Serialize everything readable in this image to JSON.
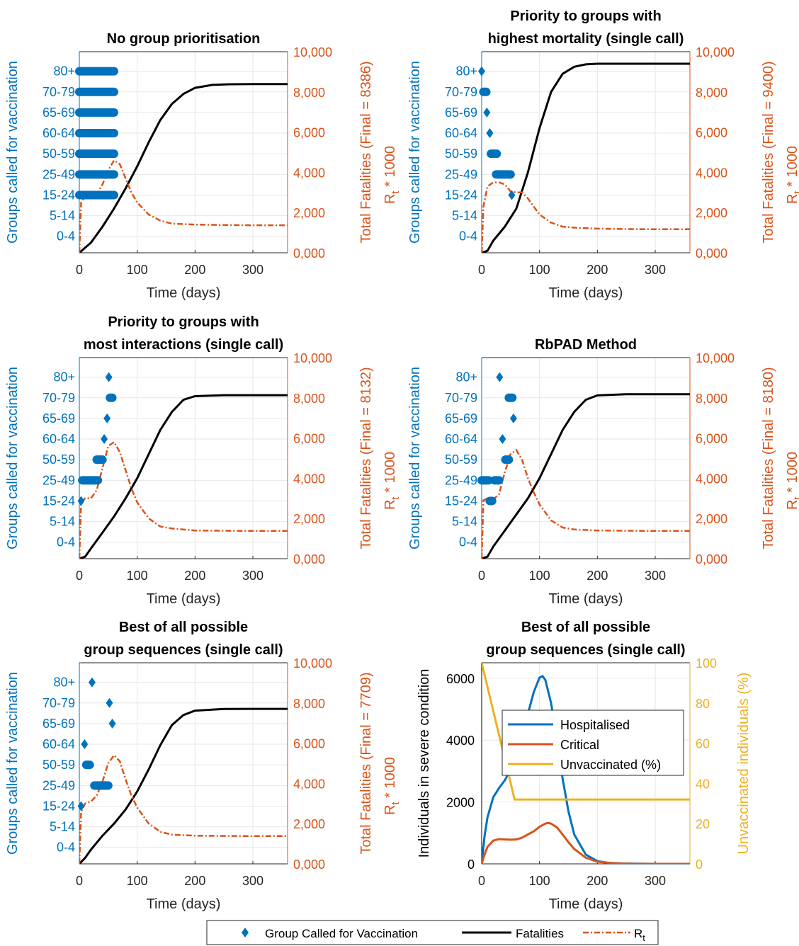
{
  "chart_data": [
    {
      "type": "line",
      "panel": "top-left",
      "title": [
        "No group prioritisation"
      ],
      "xlabel": "Time (days)",
      "ylabel_left": "Groups called for vaccination",
      "ylabel_right": [
        "Total Fatalities (Final = 8386)",
        "R_t * 1000"
      ],
      "final_fatalities": 8386,
      "xlim": [
        0,
        360
      ],
      "xticks": [
        0,
        100,
        200,
        300
      ],
      "ylim_right": [
        0,
        10000
      ],
      "yticks_right": [
        "0,000",
        "2,000",
        "4,000",
        "6,000",
        "8,000",
        "10,000"
      ],
      "categories_left": [
        "0-4",
        "5-14",
        "15-24",
        "25-49",
        "50-59",
        "60-64",
        "65-69",
        "70-79",
        "80+"
      ],
      "group_calls": [
        {
          "group": "80+",
          "from": 0,
          "to": 60
        },
        {
          "group": "70-79",
          "from": 0,
          "to": 60
        },
        {
          "group": "65-69",
          "from": 0,
          "to": 60
        },
        {
          "group": "60-64",
          "from": 0,
          "to": 60
        },
        {
          "group": "50-59",
          "from": 0,
          "to": 60
        },
        {
          "group": "25-49",
          "from": 0,
          "to": 60
        },
        {
          "group": "15-24",
          "from": 0,
          "to": 60
        }
      ],
      "fatalities": {
        "x": [
          0,
          20,
          40,
          60,
          80,
          100,
          120,
          140,
          160,
          180,
          200,
          230,
          260,
          300,
          360
        ],
        "y": [
          0,
          500,
          1300,
          2200,
          3200,
          4300,
          5500,
          6600,
          7400,
          7900,
          8200,
          8350,
          8380,
          8386,
          8386
        ]
      },
      "rt_x1000": {
        "x": [
          0,
          3,
          10,
          20,
          30,
          40,
          50,
          60,
          70,
          80,
          90,
          100,
          120,
          140,
          160,
          200,
          250,
          300,
          360
        ],
        "y": [
          0,
          2500,
          2800,
          2800,
          2900,
          3400,
          4100,
          4600,
          4400,
          3700,
          3000,
          2500,
          1900,
          1600,
          1450,
          1400,
          1380,
          1370,
          1370
        ]
      }
    },
    {
      "type": "line",
      "panel": "top-right",
      "title": [
        "Priority to groups with",
        "highest mortality (single call)"
      ],
      "xlabel": "Time (days)",
      "ylabel_left": "Groups called for vaccination",
      "ylabel_right": [
        "Total Fatalities (Final = 9400)",
        "R_t * 1000"
      ],
      "final_fatalities": 9400,
      "xlim": [
        0,
        360
      ],
      "xticks": [
        0,
        100,
        200,
        300
      ],
      "ylim_right": [
        0,
        10000
      ],
      "yticks_right": [
        "0,000",
        "2,000",
        "4,000",
        "6,000",
        "8,000",
        "10,000"
      ],
      "categories_left": [
        "0-4",
        "5-14",
        "15-24",
        "25-49",
        "50-59",
        "60-64",
        "65-69",
        "70-79",
        "80+"
      ],
      "group_calls": [
        {
          "group": "80+",
          "from": 0,
          "to": 0
        },
        {
          "group": "70-79",
          "from": 3,
          "to": 8
        },
        {
          "group": "65-69",
          "from": 9,
          "to": 9
        },
        {
          "group": "60-64",
          "from": 14,
          "to": 14
        },
        {
          "group": "50-59",
          "from": 16,
          "to": 26
        },
        {
          "group": "25-49",
          "from": 25,
          "to": 50
        },
        {
          "group": "15-24",
          "from": 52,
          "to": 52
        }
      ],
      "fatalities": {
        "x": [
          0,
          10,
          20,
          40,
          60,
          80,
          100,
          120,
          140,
          160,
          180,
          200,
          250,
          300,
          360
        ],
        "y": [
          0,
          100,
          600,
          1300,
          2200,
          4000,
          6200,
          8000,
          8900,
          9250,
          9370,
          9400,
          9400,
          9400,
          9400
        ]
      },
      "rt_x1000": {
        "x": [
          0,
          3,
          10,
          20,
          30,
          40,
          50,
          60,
          70,
          80,
          90,
          100,
          120,
          140,
          160,
          200,
          250,
          300,
          360
        ],
        "y": [
          0,
          2300,
          3300,
          3500,
          3500,
          3400,
          3050,
          3000,
          3000,
          2700,
          2300,
          1900,
          1500,
          1300,
          1250,
          1200,
          1180,
          1170,
          1170
        ]
      }
    },
    {
      "type": "line",
      "panel": "middle-left",
      "title": [
        "Priority to groups with",
        "most interactions (single call)"
      ],
      "xlabel": "Time (days)",
      "ylabel_left": "Groups called for vaccination",
      "ylabel_right": [
        "Total Fatalities (Final = 8132)",
        "R_t * 1000"
      ],
      "final_fatalities": 8132,
      "xlim": [
        0,
        360
      ],
      "xticks": [
        0,
        100,
        200,
        300
      ],
      "ylim_right": [
        0,
        10000
      ],
      "yticks_right": [
        "0,000",
        "2,000",
        "4,000",
        "6,000",
        "8,000",
        "10,000"
      ],
      "categories_left": [
        "0-4",
        "5-14",
        "15-24",
        "25-49",
        "50-59",
        "60-64",
        "65-69",
        "70-79",
        "80+"
      ],
      "group_calls": [
        {
          "group": "15-24",
          "from": 3,
          "to": 3
        },
        {
          "group": "25-49",
          "from": 5,
          "to": 32
        },
        {
          "group": "50-59",
          "from": 30,
          "to": 40
        },
        {
          "group": "60-64",
          "from": 43,
          "to": 43
        },
        {
          "group": "65-69",
          "from": 48,
          "to": 48
        },
        {
          "group": "80+",
          "from": 51,
          "to": 51
        },
        {
          "group": "70-79",
          "from": 53,
          "to": 57
        }
      ],
      "fatalities": {
        "x": [
          0,
          10,
          20,
          40,
          60,
          80,
          100,
          120,
          140,
          160,
          180,
          200,
          250,
          300,
          360
        ],
        "y": [
          0,
          100,
          500,
          1300,
          2100,
          3000,
          4000,
          5200,
          6400,
          7300,
          7900,
          8080,
          8130,
          8132,
          8132
        ]
      },
      "rt_x1000": {
        "x": [
          0,
          3,
          10,
          20,
          30,
          40,
          50,
          60,
          70,
          80,
          90,
          100,
          120,
          140,
          160,
          200,
          250,
          300,
          360
        ],
        "y": [
          0,
          2800,
          3000,
          3000,
          3400,
          4500,
          5600,
          5800,
          5300,
          4400,
          3500,
          2800,
          2000,
          1600,
          1500,
          1400,
          1390,
          1380,
          1380
        ]
      }
    },
    {
      "type": "line",
      "panel": "middle-right",
      "title": [
        "RbPAD Method"
      ],
      "xlabel": "Time (days)",
      "ylabel_left": "Groups called for vaccination",
      "ylabel_right": [
        "Total Fatalities (Final = 8180)",
        "R_t * 1000"
      ],
      "final_fatalities": 8180,
      "xlim": [
        0,
        360
      ],
      "xticks": [
        0,
        100,
        200,
        300
      ],
      "ylim_right": [
        0,
        10000
      ],
      "yticks_right": [
        "0,000",
        "2,000",
        "4,000",
        "6,000",
        "8,000",
        "10,000"
      ],
      "categories_left": [
        "0-4",
        "5-14",
        "15-24",
        "25-49",
        "50-59",
        "60-64",
        "65-69",
        "70-79",
        "80+"
      ],
      "group_calls": [
        {
          "group": "25-49",
          "from": 0,
          "to": 12
        },
        {
          "group": "25-49",
          "from": 22,
          "to": 30
        },
        {
          "group": "15-24",
          "from": 14,
          "to": 18
        },
        {
          "group": "80+",
          "from": 31,
          "to": 31
        },
        {
          "group": "60-64",
          "from": 36,
          "to": 36
        },
        {
          "group": "50-59",
          "from": 41,
          "to": 47
        },
        {
          "group": "70-79",
          "from": 47,
          "to": 53
        },
        {
          "group": "65-69",
          "from": 55,
          "to": 55
        }
      ],
      "fatalities": {
        "x": [
          0,
          10,
          20,
          40,
          60,
          80,
          100,
          120,
          140,
          160,
          180,
          200,
          250,
          300,
          360
        ],
        "y": [
          0,
          100,
          600,
          1400,
          2200,
          3000,
          4000,
          5200,
          6400,
          7300,
          7900,
          8120,
          8175,
          8180,
          8180
        ]
      },
      "rt_x1000": {
        "x": [
          0,
          3,
          10,
          20,
          30,
          40,
          50,
          60,
          70,
          80,
          90,
          100,
          120,
          140,
          160,
          200,
          250,
          300,
          360
        ],
        "y": [
          0,
          2900,
          3000,
          2950,
          3200,
          4300,
          5200,
          5400,
          4900,
          4000,
          3300,
          2700,
          1900,
          1550,
          1450,
          1400,
          1390,
          1380,
          1380
        ]
      }
    },
    {
      "type": "line",
      "panel": "bottom-left",
      "title": [
        "Best of all possible",
        "group sequences (single call)"
      ],
      "xlabel": "Time (days)",
      "ylabel_left": "Groups called for vaccination",
      "ylabel_right": [
        "Total Fatalities (Final = 7709)",
        "R_t * 1000"
      ],
      "final_fatalities": 7709,
      "xlim": [
        0,
        360
      ],
      "xticks": [
        0,
        100,
        200,
        300
      ],
      "ylim_right": [
        0,
        10000
      ],
      "yticks_right": [
        "0,000",
        "2,000",
        "4,000",
        "6,000",
        "8,000",
        "10,000"
      ],
      "categories_left": [
        "0-4",
        "5-14",
        "15-24",
        "25-49",
        "50-59",
        "60-64",
        "65-69",
        "70-79",
        "80+"
      ],
      "group_calls": [
        {
          "group": "15-24",
          "from": 3,
          "to": 3
        },
        {
          "group": "60-64",
          "from": 9,
          "to": 9
        },
        {
          "group": "50-59",
          "from": 12,
          "to": 18
        },
        {
          "group": "80+",
          "from": 22,
          "to": 22
        },
        {
          "group": "25-49",
          "from": 26,
          "to": 50
        },
        {
          "group": "70-79",
          "from": 52,
          "to": 52
        },
        {
          "group": "65-69",
          "from": 57,
          "to": 57
        }
      ],
      "fatalities": {
        "x": [
          0,
          10,
          20,
          40,
          60,
          80,
          100,
          120,
          140,
          160,
          180,
          200,
          250,
          300,
          360
        ],
        "y": [
          0,
          300,
          700,
          1400,
          2000,
          2700,
          3600,
          4700,
          5900,
          6900,
          7400,
          7620,
          7700,
          7709,
          7709
        ]
      },
      "rt_x1000": {
        "x": [
          0,
          3,
          10,
          20,
          30,
          40,
          50,
          60,
          70,
          80,
          90,
          100,
          120,
          140,
          160,
          200,
          250,
          300,
          360
        ],
        "y": [
          0,
          2600,
          3000,
          3100,
          3400,
          4100,
          5000,
          5400,
          5100,
          4200,
          3400,
          2800,
          2000,
          1600,
          1450,
          1400,
          1390,
          1380,
          1380
        ]
      }
    },
    {
      "type": "line",
      "panel": "bottom-right",
      "title": [
        "Best of all possible",
        "group sequences (single call)"
      ],
      "xlabel": "Time (days)",
      "ylabel_left": "Individuals in severe condition",
      "ylabel_right": "Unvaccinated individuals (%)",
      "xlim": [
        0,
        360
      ],
      "xticks": [
        0,
        100,
        200,
        300
      ],
      "ylim_left": [
        0,
        6500
      ],
      "yticks_left": [
        "0",
        "2000",
        "4000",
        "6000"
      ],
      "ylim_right": [
        0,
        100
      ],
      "yticks_right": [
        "0",
        "20",
        "40",
        "60",
        "80",
        "100"
      ],
      "legend": [
        "Hospitalised",
        "Critical",
        "Unvaccinated (%)"
      ],
      "series": [
        {
          "name": "Hospitalised",
          "axis": "left",
          "color": "#0072BD",
          "x": [
            0,
            5,
            10,
            20,
            30,
            40,
            50,
            60,
            70,
            80,
            90,
            100,
            105,
            110,
            120,
            130,
            140,
            150,
            160,
            180,
            200,
            220,
            250,
            300,
            360
          ],
          "y": [
            0,
            900,
            1500,
            2150,
            2450,
            2700,
            3050,
            3500,
            4100,
            4850,
            5550,
            6020,
            6070,
            5950,
            5200,
            4000,
            2750,
            1700,
            950,
            300,
            90,
            30,
            10,
            0,
            0
          ]
        },
        {
          "name": "Critical",
          "axis": "left",
          "color": "#D95319",
          "x": [
            0,
            5,
            10,
            20,
            30,
            40,
            50,
            60,
            70,
            80,
            90,
            100,
            110,
            115,
            120,
            130,
            140,
            150,
            160,
            180,
            200,
            230,
            260,
            300,
            360
          ],
          "y": [
            0,
            300,
            550,
            750,
            800,
            790,
            780,
            790,
            850,
            950,
            1050,
            1200,
            1300,
            1320,
            1300,
            1180,
            950,
            700,
            480,
            200,
            70,
            15,
            0,
            0,
            0
          ]
        },
        {
          "name": "Unvaccinated (%)",
          "axis": "right",
          "color": "#EDB120",
          "x": [
            0,
            57,
            360
          ],
          "y": [
            100,
            32,
            32
          ]
        }
      ]
    }
  ],
  "legend": {
    "group_called": "Group Called for Vaccination",
    "fatalities": "Fatalities",
    "rt": "R",
    "rt_sub": "t"
  },
  "colors": {
    "blue": "#0072BD",
    "orange": "#D95319",
    "yellow": "#EDB120",
    "black": "#000000",
    "grid": "#E6E6E6"
  }
}
